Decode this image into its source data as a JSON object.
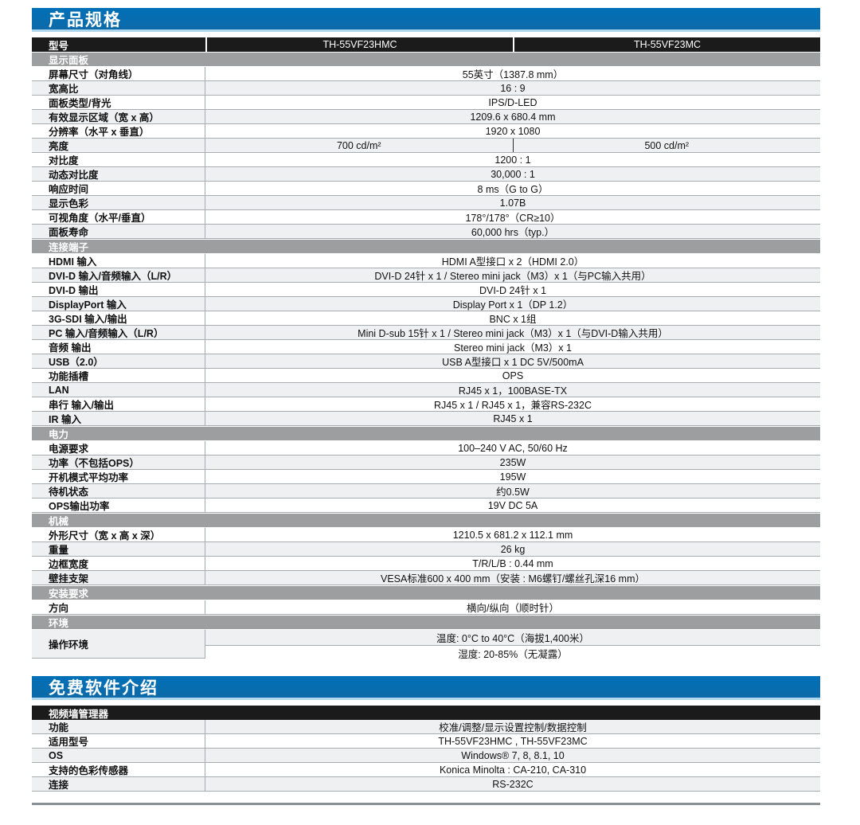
{
  "colors": {
    "accent": "#0070b8",
    "accent2": "#0d6aa8",
    "accent_edge": "#aed6ec",
    "dark": "#1b1b1b",
    "band": "#9c9ea0",
    "stripe": "#eef0f2",
    "line": "#a5abae",
    "rule": "#8b9094"
  },
  "spec": {
    "title": "产品规格",
    "model_label": "型号",
    "models": [
      "TH-55VF23HMC",
      "TH-55VF23MC"
    ],
    "sections": [
      {
        "header": "显示面板",
        "rows": [
          {
            "label": "屏幕尺寸（对角线）",
            "value": "55英寸（1387.8 mm）"
          },
          {
            "label": "宽高比",
            "value": "16 : 9"
          },
          {
            "label": "面板类型/背光",
            "value": "IPS/D-LED"
          },
          {
            "label": "有效显示区域（宽 x 高）",
            "value": "1209.6 x 680.4 mm"
          },
          {
            "label": "分辨率（水平 x 垂直）",
            "value": "1920 x 1080"
          },
          {
            "label": "亮度",
            "split": [
              "700 cd/m²",
              "500 cd/m²"
            ]
          },
          {
            "label": "对比度",
            "value": "1200 : 1"
          },
          {
            "label": "动态对比度",
            "value": "30,000 : 1"
          },
          {
            "label": "响应时间",
            "value": "8 ms（G to G）"
          },
          {
            "label": "显示色彩",
            "value": "1.07B"
          },
          {
            "label": "可视角度（水平/垂直）",
            "value": "178°/178°（CR≥10）"
          },
          {
            "label": "面板寿命",
            "value": "60,000 hrs（typ.）"
          }
        ]
      },
      {
        "header": "连接端子",
        "rows": [
          {
            "label": "HDMI 输入",
            "value": "HDMI A型接口 x 2（HDMI 2.0）"
          },
          {
            "label": "DVI-D 输入/音频输入（L/R）",
            "value": "DVI-D 24针 x 1 / Stereo mini jack（M3）x 1（与PC输入共用）"
          },
          {
            "label": "DVI-D 输出",
            "value": "DVI-D 24针 x 1"
          },
          {
            "label": "DisplayPort 输入",
            "value": "Display Port x 1（DP 1.2）"
          },
          {
            "label": "3G-SDI 输入/输出",
            "value": "BNC x 1组"
          },
          {
            "label": "PC 输入/音频输入（L/R）",
            "value": "Mini D-sub 15针 x 1 / Stereo mini jack（M3）x 1（与DVI-D输入共用）"
          },
          {
            "label": "音频 输出",
            "value": "Stereo mini jack（M3）x 1"
          },
          {
            "label": "USB（2.0）",
            "value": "USB A型接口 x 1 DC 5V/500mA"
          },
          {
            "label": "功能插槽",
            "value": "OPS"
          },
          {
            "label": "LAN",
            "value": "RJ45 x 1，100BASE-TX"
          },
          {
            "label": "串行 输入/输出",
            "value": "RJ45 x 1 / RJ45 x 1，兼容RS-232C"
          },
          {
            "label": "IR 输入",
            "value": "RJ45 x 1"
          }
        ]
      },
      {
        "header": "电力",
        "rows": [
          {
            "label": "电源要求",
            "value": "100–240 V AC, 50/60 Hz"
          },
          {
            "label": "功率（不包括OPS）",
            "value": "235W"
          },
          {
            "label": "开机模式平均功率",
            "value": "195W"
          },
          {
            "label": "待机状态",
            "value": "约0.5W"
          },
          {
            "label": "OPS输出功率",
            "value": "19V DC 5A"
          }
        ]
      },
      {
        "header": "机械",
        "rows": [
          {
            "label": "外形尺寸（宽 x 高 x 深）",
            "value": "1210.5 x 681.2 x 112.1 mm"
          },
          {
            "label": "重量",
            "value": "26 kg"
          },
          {
            "label": "边框宽度",
            "value": "T/R/L/B : 0.44 mm"
          },
          {
            "label": "壁挂支架",
            "value": "VESA标准600 x 400 mm（安装 : M6螺钉/螺丝孔深16 mm）"
          }
        ]
      },
      {
        "header": "安装要求",
        "rows": [
          {
            "label": "方向",
            "value": "横向/纵向（顺时针）"
          }
        ]
      },
      {
        "header": "环境",
        "rows": [
          {
            "label": "操作环境",
            "values": [
              "温度: 0°C to 40°C（海拔1,400米）",
              "湿度: 20-85%（无凝露）"
            ]
          }
        ]
      }
    ]
  },
  "software": {
    "title": "免费软件介绍",
    "header": "视频墙管理器",
    "rows": [
      {
        "label": "功能",
        "value": "校准/调整/显示设置控制/数据控制"
      },
      {
        "label": "适用型号",
        "value": "TH-55VF23HMC , TH-55VF23MC"
      },
      {
        "label": "OS",
        "value": "Windows® 7, 8, 8.1, 10"
      },
      {
        "label": "支持的色彩传感器",
        "value": "Konica Minolta : CA-210, CA-310"
      },
      {
        "label": "连接",
        "value": "RS-232C"
      }
    ]
  }
}
